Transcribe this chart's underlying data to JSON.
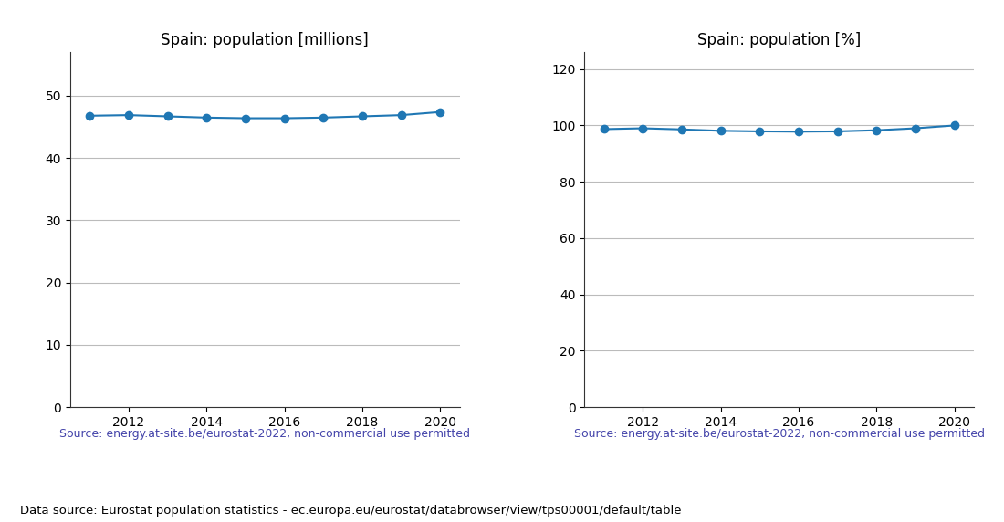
{
  "years": [
    2011,
    2012,
    2013,
    2014,
    2015,
    2016,
    2017,
    2018,
    2019,
    2020
  ],
  "population_millions": [
    46.8,
    46.9,
    46.7,
    46.5,
    46.4,
    46.4,
    46.5,
    46.7,
    46.9,
    47.4
  ],
  "population_pct": [
    98.7,
    99.0,
    98.6,
    98.1,
    97.9,
    97.8,
    97.9,
    98.3,
    99.0,
    100.0
  ],
  "title_millions": "Spain: population [millions]",
  "title_pct": "Spain: population [%]",
  "ylim_millions": [
    0,
    57
  ],
  "ylim_pct": [
    0,
    126
  ],
  "yticks_millions": [
    0,
    10,
    20,
    30,
    40,
    50
  ],
  "yticks_pct": [
    0,
    20,
    40,
    60,
    80,
    100,
    120
  ],
  "line_color": "#1f77b4",
  "marker": "o",
  "markersize": 6,
  "linewidth": 1.5,
  "source_text": "Source: energy.at-site.be/eurostat-2022, non-commercial use permitted",
  "source_color": "#4444aa",
  "footer_text": "Data source: Eurostat population statistics - ec.europa.eu/eurostat/databrowser/view/tps00001/default/table",
  "footer_color": "#000000",
  "grid_color": "#bbbbbb",
  "title_fontsize": 12,
  "tick_fontsize": 10,
  "source_fontsize": 9,
  "footer_fontsize": 9.5
}
